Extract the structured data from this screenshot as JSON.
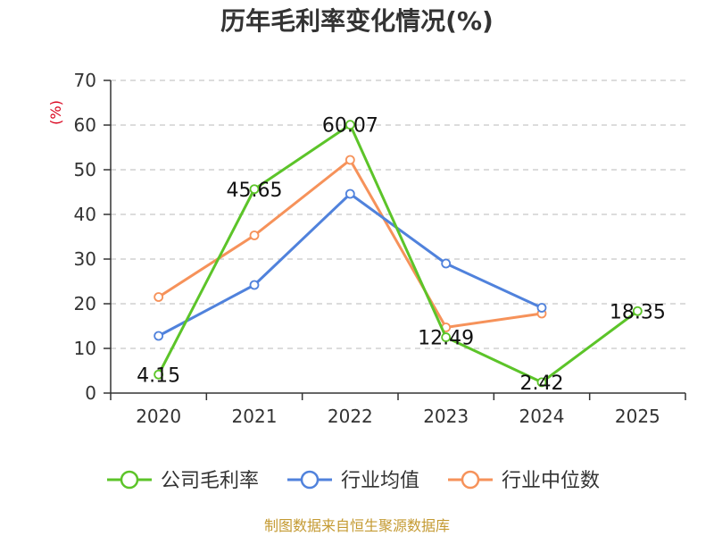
{
  "chart_data": {
    "type": "line",
    "title": "历年毛利率变化情况(%)",
    "ylabel": "(%)",
    "xlabel": "",
    "categories": [
      "2020",
      "2021",
      "2022",
      "2023",
      "2024",
      "2025"
    ],
    "ylim": [
      0,
      70
    ],
    "yticks": [
      0,
      10,
      20,
      30,
      40,
      50,
      60,
      70
    ],
    "grid": "horizontal-dashed",
    "legend_position": "bottom",
    "series": [
      {
        "name": "公司毛利率",
        "color": "#5cc429",
        "values": [
          4.15,
          45.65,
          60.07,
          12.49,
          2.42,
          18.35
        ],
        "labels": [
          "4.15",
          "45.65",
          "60.07",
          "12.49",
          "2.42",
          "18.35"
        ]
      },
      {
        "name": "行业均值",
        "color": "#5082dc",
        "values": [
          12.8,
          24.2,
          44.6,
          29.0,
          19.1,
          null
        ]
      },
      {
        "name": "行业中位数",
        "color": "#f6925a",
        "values": [
          21.5,
          35.3,
          52.2,
          14.7,
          17.8,
          null
        ]
      }
    ],
    "ylabel_color": "#d9001b"
  },
  "footer": {
    "source": "制图数据来自恒生聚源数据库",
    "color": "#c49a32"
  }
}
